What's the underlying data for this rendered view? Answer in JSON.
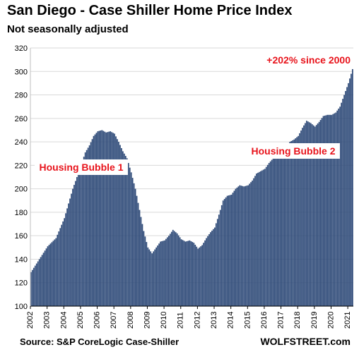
{
  "header": {
    "title": "San Diego - Case Shiller Home Price Index",
    "subtitle": "Not seasonally adjusted"
  },
  "footer": {
    "source": "Source: S&P CoreLogic Case-Shiller",
    "brand": "WOLFSTREET.com"
  },
  "colors": {
    "bar": "#2e4a78",
    "bar_edge": "#ffffff",
    "grid": "#d9d9d9",
    "annotation": "#e8141c",
    "text": "#000000"
  },
  "chart_data": {
    "type": "bar",
    "title": "San Diego - Case Shiller Home Price Index",
    "subtitle": "Not seasonally adjusted",
    "xlabel": "",
    "ylabel": "",
    "ylim": [
      100,
      320
    ],
    "yticks": [
      100,
      120,
      140,
      160,
      180,
      200,
      220,
      240,
      260,
      280,
      300,
      320
    ],
    "xlim": [
      "2002-01",
      "2021-04"
    ],
    "x_tick_labels": [
      "2002",
      "2003",
      "2004",
      "2005",
      "2006",
      "2007",
      "2008",
      "2009",
      "2010",
      "2011",
      "2012",
      "2013",
      "2014",
      "2015",
      "2016",
      "2017",
      "2018",
      "2019",
      "2020",
      "2021"
    ],
    "grid": "horizontal",
    "frequency": "monthly",
    "start": "2002-01",
    "anchors": [
      [
        "2002-01",
        129
      ],
      [
        "2002-07",
        140
      ],
      [
        "2003-01",
        151
      ],
      [
        "2003-07",
        158
      ],
      [
        "2004-01",
        175
      ],
      [
        "2004-07",
        200
      ],
      [
        "2005-01",
        220
      ],
      [
        "2005-04",
        231
      ],
      [
        "2005-07",
        237
      ],
      [
        "2005-10",
        245
      ],
      [
        "2006-01",
        249
      ],
      [
        "2006-04",
        250
      ],
      [
        "2006-07",
        248
      ],
      [
        "2006-10",
        249
      ],
      [
        "2007-01",
        247
      ],
      [
        "2007-04",
        240
      ],
      [
        "2007-07",
        232
      ],
      [
        "2007-10",
        226
      ],
      [
        "2008-01",
        214
      ],
      [
        "2008-04",
        200
      ],
      [
        "2008-07",
        182
      ],
      [
        "2008-10",
        164
      ],
      [
        "2009-01",
        150
      ],
      [
        "2009-04",
        145
      ],
      [
        "2009-07",
        150
      ],
      [
        "2009-10",
        155
      ],
      [
        "2010-01",
        156
      ],
      [
        "2010-04",
        160
      ],
      [
        "2010-07",
        165
      ],
      [
        "2010-10",
        162
      ],
      [
        "2011-01",
        157
      ],
      [
        "2011-04",
        155
      ],
      [
        "2011-07",
        156
      ],
      [
        "2011-10",
        154
      ],
      [
        "2012-01",
        149
      ],
      [
        "2012-04",
        152
      ],
      [
        "2012-07",
        158
      ],
      [
        "2012-10",
        163
      ],
      [
        "2013-01",
        167
      ],
      [
        "2013-04",
        178
      ],
      [
        "2013-07",
        190
      ],
      [
        "2013-10",
        194
      ],
      [
        "2014-01",
        195
      ],
      [
        "2014-04",
        200
      ],
      [
        "2014-07",
        203
      ],
      [
        "2014-10",
        202
      ],
      [
        "2015-01",
        203
      ],
      [
        "2015-04",
        207
      ],
      [
        "2015-07",
        213
      ],
      [
        "2015-10",
        215
      ],
      [
        "2016-01",
        217
      ],
      [
        "2016-04",
        222
      ],
      [
        "2016-07",
        226
      ],
      [
        "2016-10",
        228
      ],
      [
        "2017-01",
        230
      ],
      [
        "2017-04",
        236
      ],
      [
        "2017-07",
        240
      ],
      [
        "2017-10",
        242
      ],
      [
        "2018-01",
        245
      ],
      [
        "2018-04",
        252
      ],
      [
        "2018-07",
        258
      ],
      [
        "2018-10",
        256
      ],
      [
        "2019-01",
        253
      ],
      [
        "2019-04",
        257
      ],
      [
        "2019-07",
        262
      ],
      [
        "2019-10",
        263
      ],
      [
        "2020-01",
        263
      ],
      [
        "2020-04",
        265
      ],
      [
        "2020-07",
        270
      ],
      [
        "2020-10",
        280
      ],
      [
        "2021-01",
        290
      ],
      [
        "2021-04",
        302
      ]
    ],
    "annotations": [
      {
        "id": "housing-bubble-1",
        "text": "Housing Bubble 1",
        "color": "#e8141c",
        "boxed": true
      },
      {
        "id": "housing-bubble-2",
        "text": "Housing Bubble 2",
        "color": "#e8141c",
        "boxed": true
      },
      {
        "id": "since-2000",
        "text": "+202% since 2000",
        "color": "#e8141c",
        "boxed": false
      }
    ]
  }
}
